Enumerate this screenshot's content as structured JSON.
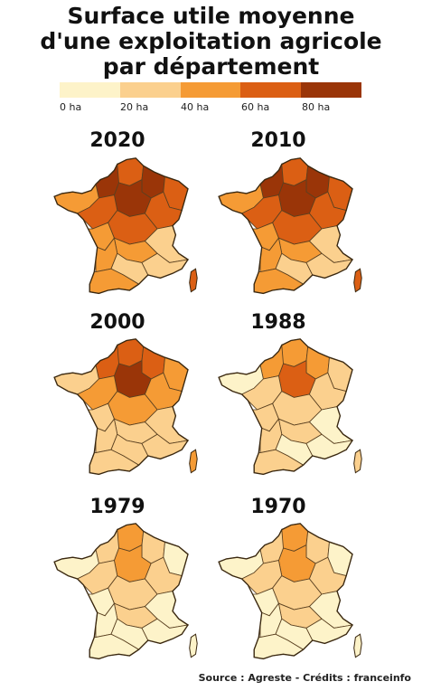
{
  "title": {
    "line1": "Surface utile moyenne",
    "line2": "d'une exploitation agricole",
    "line3": "par département"
  },
  "legend": {
    "colors": [
      "#fdf3c9",
      "#fbd08e",
      "#f59b35",
      "#db5f14",
      "#9a3508"
    ],
    "ticks": [
      "0 ha",
      "20 ha",
      "40 ha",
      "60 ha",
      "80 ha"
    ]
  },
  "maps": [
    {
      "year": "2020",
      "level": 3
    },
    {
      "year": "2010",
      "level": 3
    },
    {
      "year": "2000",
      "level": 2
    },
    {
      "year": "1988",
      "level": 1
    },
    {
      "year": "1979",
      "level": 0
    },
    {
      "year": "1970",
      "level": 0
    }
  ],
  "source": "Source : Agreste - Crédits : franceinfo"
}
